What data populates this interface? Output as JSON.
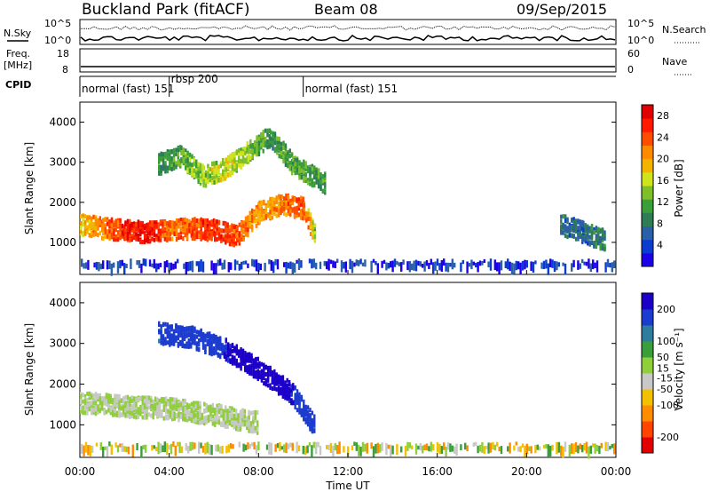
{
  "header": {
    "site": "Buckland Park (fitACF)",
    "beam": "Beam 08",
    "date": "09/Sep/2015"
  },
  "panels": {
    "nsky": {
      "left_label": "N.Sky",
      "right_label": "N.Search",
      "ytick_top": "10^5",
      "ytick_bot": "10^0"
    },
    "freq": {
      "left_label_1": "Freq.",
      "left_label_2": "[MHz]",
      "tick_18": "18",
      "tick_8": "8",
      "right_label": "Nave",
      "rtick_60": "60",
      "rtick_0": "0"
    },
    "cpid": {
      "label": "CPID",
      "modes": [
        {
          "name": "normal (fast) 151",
          "start": 0,
          "end": 4
        },
        {
          "name": "rbsp 200",
          "start": 4,
          "end": 10
        },
        {
          "name": "normal (fast) 151",
          "start": 10,
          "end": 24
        }
      ]
    }
  },
  "chart_data": [
    {
      "type": "heatmap",
      "title": "",
      "xlabel": "Time UT",
      "ylabel": "Slant Range [km]",
      "xlim": [
        0,
        24
      ],
      "ylim": [
        200,
        4500
      ],
      "xticks": [
        "00:00",
        "04:00",
        "08:00",
        "12:00",
        "16:00",
        "20:00",
        "00:00"
      ],
      "yticks": [
        1000,
        2000,
        3000,
        4000
      ],
      "colorbar": {
        "label": "Power [dB]",
        "ticks": [
          4,
          8,
          12,
          16,
          20,
          24,
          28
        ],
        "range": [
          0,
          30
        ],
        "colors": [
          "#1c00e8",
          "#0a3ccf",
          "#2b5fa6",
          "#2e7d55",
          "#3a9e3a",
          "#7fbf2a",
          "#cfe41c",
          "#f3b400",
          "#ff8a00",
          "#ff4d00",
          "#ff1a00",
          "#e00000"
        ]
      },
      "features": [
        {
          "name": "main echo band",
          "x": [
            0.0,
            1.0,
            2.0,
            3.0,
            4.0,
            5.0,
            6.0,
            7.0,
            8.0,
            9.0,
            10.0,
            10.5
          ],
          "range_km": [
            1500,
            1400,
            1350,
            1300,
            1350,
            1400,
            1350,
            1200,
            1800,
            2000,
            1900,
            1200
          ],
          "power_db": [
            18,
            22,
            26,
            28,
            22,
            24,
            26,
            24,
            20,
            22,
            24,
            14
          ]
        },
        {
          "name": "far range echoes",
          "x": [
            3.5,
            4.5,
            5.5,
            6.5,
            7.5,
            8.5,
            9.5,
            11.0
          ],
          "range_km": [
            3000,
            3200,
            2700,
            2900,
            3300,
            3700,
            3000,
            2500
          ],
          "power_db": [
            10,
            12,
            14,
            16,
            14,
            10,
            12,
            10
          ]
        },
        {
          "name": "late echoes",
          "x": [
            21.5,
            22.5,
            23.5
          ],
          "range_km": [
            1500,
            1300,
            1100
          ],
          "power_db": [
            8,
            6,
            10
          ]
        }
      ]
    },
    {
      "type": "heatmap",
      "title": "",
      "xlabel": "Time UT",
      "ylabel": "Slant Range [km]",
      "xlim": [
        0,
        24
      ],
      "ylim": [
        200,
        4500
      ],
      "xticks": [
        "00:00",
        "04:00",
        "08:00",
        "12:00",
        "16:00",
        "20:00",
        "00:00"
      ],
      "yticks": [
        1000,
        2000,
        3000,
        4000
      ],
      "colorbar": {
        "label": "Velocity [m s⁻¹]",
        "ticks": [
          200,
          100,
          50,
          15,
          -15,
          -50,
          -100,
          -200
        ],
        "range": [
          -250,
          250
        ],
        "colors": [
          "#e00000",
          "#ff4500",
          "#ff8c00",
          "#f3c000",
          "#c8c8c8",
          "#8fcf3a",
          "#3a9e3a",
          "#2e7d9e",
          "#1c3ccf",
          "#1c00c8"
        ]
      },
      "features": [
        {
          "name": "ground scatter (near zero velocity)",
          "x": [
            0.0,
            2.0,
            4.0,
            6.0,
            8.0
          ],
          "range_km": [
            1600,
            1500,
            1450,
            1300,
            1100
          ],
          "velocity": [
            0,
            0,
            0,
            0,
            0
          ]
        },
        {
          "name": "ionospheric scatter",
          "x": [
            3.5,
            5.0,
            6.5,
            8.0,
            9.5,
            10.5
          ],
          "range_km": [
            3300,
            3200,
            2900,
            2400,
            1800,
            1000
          ],
          "velocity": [
            150,
            180,
            200,
            220,
            200,
            150
          ]
        }
      ]
    }
  ]
}
